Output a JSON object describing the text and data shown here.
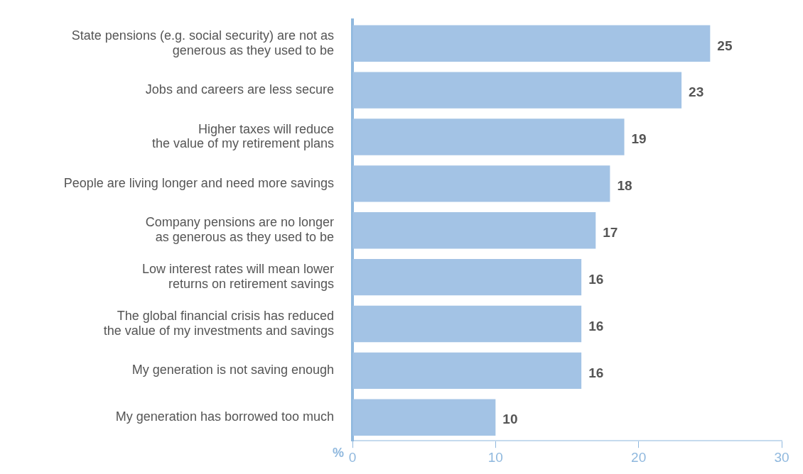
{
  "chart_data": {
    "type": "bar",
    "orientation": "horizontal",
    "categories": [
      "State pensions (e.g. social security) are not as\ngenerous as they used to be",
      "Jobs and careers are less secure",
      "Higher taxes will reduce\nthe value of my retirement plans",
      "People are living longer and need more savings",
      "Company pensions are no longer\nas generous as they used to be",
      "Low interest rates will mean lower\nreturns on retirement savings",
      "The global financial crisis has reduced\nthe value of my investments and savings",
      "My generation is not saving enough",
      "My generation has borrowed too much"
    ],
    "values": [
      25,
      23,
      19,
      18,
      17,
      16,
      16,
      16,
      10
    ],
    "color": "#a3c3e5",
    "xlabel": "%",
    "xlim": [
      0,
      30
    ],
    "xticks": [
      0,
      10,
      20,
      30
    ],
    "grid": false,
    "legend": false,
    "data_labels": true
  }
}
